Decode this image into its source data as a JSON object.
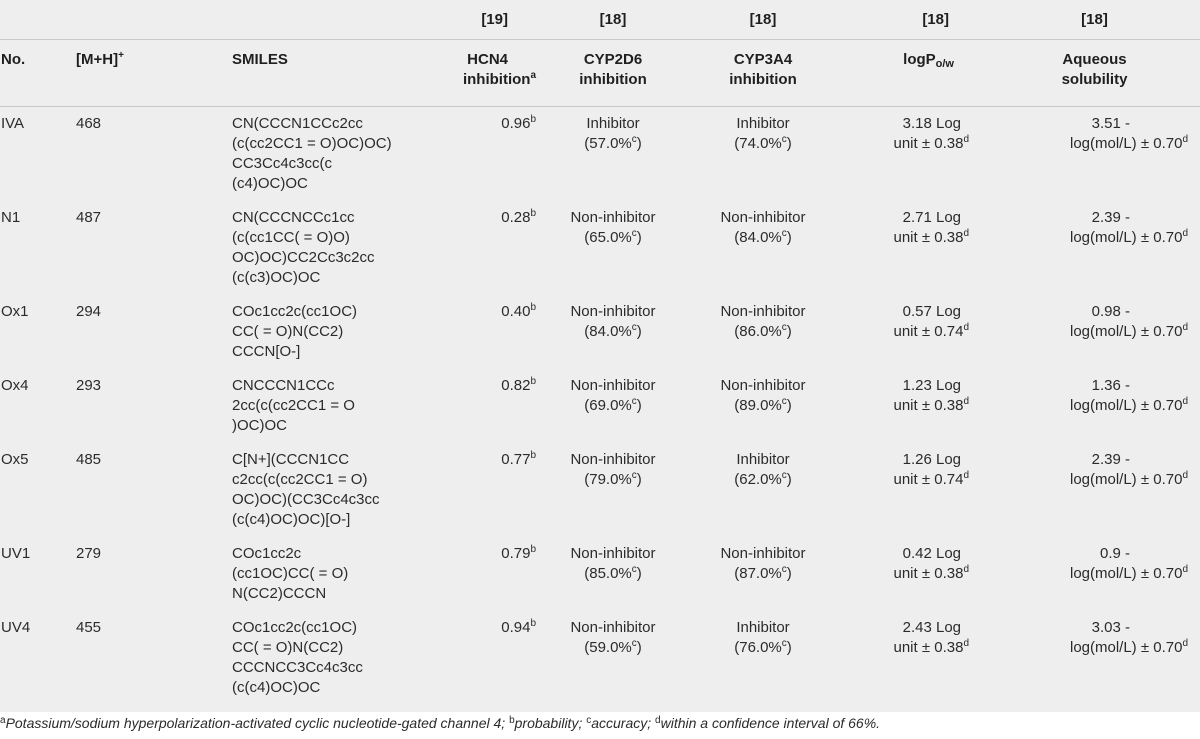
{
  "refs": [
    "[19]",
    "[18]",
    "[18]",
    "[18]",
    "[18]"
  ],
  "headers": {
    "no": "No.",
    "mh_base": "[M+H]",
    "mh_sup": "+",
    "smiles": "SMILES",
    "hcn4_l1": "HCN4",
    "hcn4_l2": "inhibition",
    "hcn4_sup": "a",
    "cyp2d6_l1": "CYP2D6",
    "cyp2d6_l2": "inhibition",
    "cyp3a4_l1": "CYP3A4",
    "cyp3a4_l2": "inhibition",
    "logp_base": "logP",
    "logp_sub": "o/w",
    "aq_l1": "Aqueous",
    "aq_l2": "solubility"
  },
  "rows": [
    {
      "no": "IVA",
      "mh": "468",
      "smiles": "CN(CCCN1CCc2cc\n(c(cc2CC1 = O)OC)OC)\nCC3Cc4c3cc(c\n(c4)OC)OC",
      "hcn4": "0.96",
      "cyp2d6": "Inhibitor",
      "cyp2d6_pct": "(57.0%",
      "cyp3a4": "Inhibitor",
      "cyp3a4_pct": "(74.0%",
      "logp": "3.18 Log",
      "logp_err": "unit ± 0.38",
      "aq": "3.51 -",
      "aq_err": "log(mol/L) ± 0.70"
    },
    {
      "no": "N1",
      "mh": "487",
      "smiles": "CN(CCCNCCc1cc\n(c(cc1CC( = O)O)\nOC)OC)CC2Cc3c2cc\n(c(c3)OC)OC",
      "hcn4": "0.28",
      "cyp2d6": "Non-inhibitor",
      "cyp2d6_pct": "(65.0%",
      "cyp3a4": "Non-inhibitor",
      "cyp3a4_pct": "(84.0%",
      "logp": "2.71 Log",
      "logp_err": "unit ± 0.38",
      "aq": "2.39 -",
      "aq_err": "log(mol/L) ± 0.70"
    },
    {
      "no": "Ox1",
      "mh": "294",
      "smiles": "COc1cc2c(cc1OC)\nCC( = O)N(CC2)\nCCCN[O-]",
      "hcn4": "0.40",
      "cyp2d6": "Non-inhibitor",
      "cyp2d6_pct": "(84.0%",
      "cyp3a4": "Non-inhibitor",
      "cyp3a4_pct": "(86.0%",
      "logp": "0.57 Log",
      "logp_err": "unit ± 0.74",
      "aq": "0.98 -",
      "aq_err": "log(mol/L) ± 0.70"
    },
    {
      "no": "Ox4",
      "mh": "293",
      "smiles": "CNCCCN1CCc\n2cc(c(cc2CC1 = O\n)OC)OC",
      "hcn4": "0.82",
      "cyp2d6": "Non-inhibitor",
      "cyp2d6_pct": "(69.0%",
      "cyp3a4": "Non-inhibitor",
      "cyp3a4_pct": "(89.0%",
      "logp": "1.23 Log",
      "logp_err": "unit ± 0.38",
      "aq": "1.36 -",
      "aq_err": "log(mol/L) ± 0.70"
    },
    {
      "no": "Ox5",
      "mh": "485",
      "smiles": "C[N+](CCCN1CC\nc2cc(c(cc2CC1 = O)\nOC)OC)(CC3Cc4c3cc\n(c(c4)OC)OC)[O-]",
      "hcn4": "0.77",
      "cyp2d6": "Non-inhibitor",
      "cyp2d6_pct": "(79.0%",
      "cyp3a4": "Inhibitor",
      "cyp3a4_pct": "(62.0%",
      "logp": "1.26 Log",
      "logp_err": "unit ± 0.74",
      "aq": "2.39 -",
      "aq_err": "log(mol/L) ± 0.70"
    },
    {
      "no": "UV1",
      "mh": "279",
      "smiles": "COc1cc2c\n(cc1OC)CC( = O)\nN(CC2)CCCN",
      "hcn4": "0.79",
      "cyp2d6": "Non-inhibitor",
      "cyp2d6_pct": "(85.0%",
      "cyp3a4": "Non-inhibitor",
      "cyp3a4_pct": "(87.0%",
      "logp": "0.42 Log",
      "logp_err": "unit ± 0.38",
      "aq": "0.9 -",
      "aq_err": "log(mol/L) ± 0.70"
    },
    {
      "no": "UV4",
      "mh": "455",
      "smiles": "COc1cc2c(cc1OC)\nCC( = O)N(CC2)\nCCCNCC3Cc4c3cc\n(c(c4)OC)OC",
      "hcn4": "0.94",
      "cyp2d6": "Non-inhibitor",
      "cyp2d6_pct": "(59.0%",
      "cyp3a4": "Inhibitor",
      "cyp3a4_pct": "(76.0%",
      "logp": "2.43 Log",
      "logp_err": "unit ± 0.38",
      "aq": "3.03 -",
      "aq_err": "log(mol/L) ± 0.70"
    }
  ],
  "marks": {
    "b": "b",
    "c": "c",
    "d": "d",
    "pct_close": ")"
  },
  "footnote": {
    "a_mark": "a",
    "a_text": "Potassium/sodium hyperpolarization-activated cyclic nucleotide-gated channel 4; ",
    "b_mark": "b",
    "b_text": "probability; ",
    "c_mark": "c",
    "c_text": "accuracy; ",
    "d_mark": "d",
    "d_text": "within a confidence interval of 66%."
  }
}
